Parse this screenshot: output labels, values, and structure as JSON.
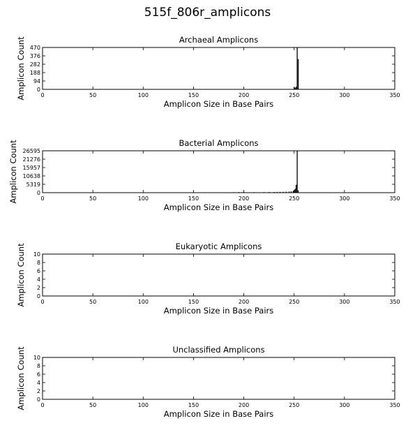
{
  "figure": {
    "title": "515f_806r_amplicons"
  },
  "chart_data": [
    {
      "type": "bar",
      "title": "Archaeal Amplicons",
      "xlabel": "Amplicon Size in Base Pairs",
      "ylabel": "Amplicon Count",
      "xlim": [
        0,
        350
      ],
      "ylim": [
        0,
        470
      ],
      "xticks": [
        "0",
        "50",
        "100",
        "150",
        "200",
        "250",
        "300",
        "350"
      ],
      "yticks": [
        "0",
        "94",
        "188",
        "282",
        "376",
        "470"
      ],
      "x": [
        250,
        251,
        252,
        253,
        254
      ],
      "values": [
        25,
        18,
        30,
        470,
        340
      ]
    },
    {
      "type": "bar",
      "title": "Bacterial Amplicons",
      "xlabel": "Amplicon Size in Base Pairs",
      "ylabel": "Amplicon Count",
      "xlim": [
        0,
        350
      ],
      "ylim": [
        0,
        26595
      ],
      "xticks": [
        "0",
        "50",
        "100",
        "150",
        "200",
        "250",
        "300",
        "350"
      ],
      "yticks": [
        "0",
        "5319",
        "10638",
        "15957",
        "21276",
        "26595"
      ],
      "x": [
        140,
        190,
        195,
        198,
        200,
        203,
        210,
        220,
        225,
        230,
        233,
        236,
        239,
        242,
        245,
        247,
        249,
        250,
        251,
        252,
        253,
        254
      ],
      "values": [
        200,
        300,
        400,
        300,
        450,
        250,
        300,
        350,
        400,
        450,
        500,
        500,
        550,
        600,
        700,
        800,
        1100,
        1600,
        2500,
        5000,
        26595,
        1500
      ]
    },
    {
      "type": "bar",
      "title": "Eukaryotic Amplicons",
      "xlabel": "Amplicon Size in Base Pairs",
      "ylabel": "Amplicon Count",
      "xlim": [
        0,
        350
      ],
      "ylim": [
        0,
        10
      ],
      "xticks": [
        "0",
        "50",
        "100",
        "150",
        "200",
        "250",
        "300",
        "350"
      ],
      "yticks": [
        "0",
        "2",
        "4",
        "6",
        "8",
        "10"
      ],
      "x": [],
      "values": []
    },
    {
      "type": "bar",
      "title": "Unclassified Amplicons",
      "xlabel": "Amplicon Size in Base Pairs",
      "ylabel": "Amplicon Count",
      "xlim": [
        0,
        350
      ],
      "ylim": [
        0,
        10
      ],
      "xticks": [
        "0",
        "50",
        "100",
        "150",
        "200",
        "250",
        "300",
        "350"
      ],
      "yticks": [
        "0",
        "2",
        "4",
        "6",
        "8",
        "10"
      ],
      "x": [],
      "values": []
    }
  ]
}
